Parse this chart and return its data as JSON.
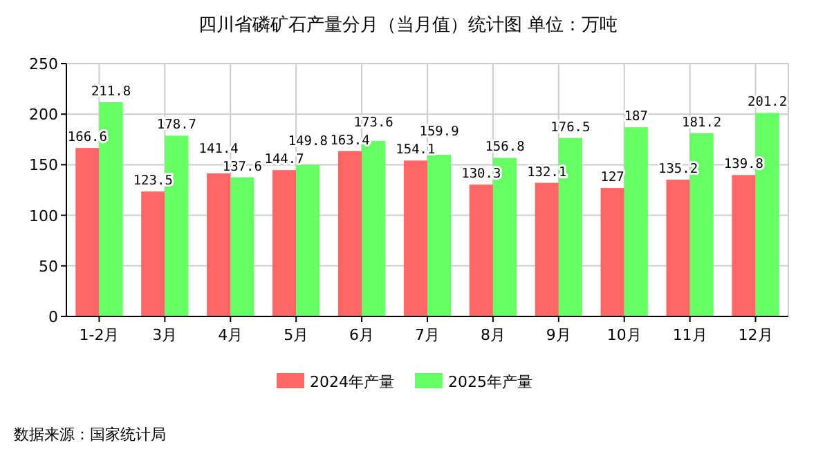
{
  "chart_data": {
    "type": "bar",
    "title": "四川省磷矿石产量分月（当月值）统计图 单位：万吨",
    "categories": [
      "1-2月",
      "3月",
      "4月",
      "5月",
      "6月",
      "7月",
      "8月",
      "9月",
      "10月",
      "11月",
      "12月"
    ],
    "series": [
      {
        "name": "2024年产量",
        "color": "#ff6666",
        "values": [
          166.6,
          123.5,
          141.4,
          144.7,
          163.4,
          154.1,
          130.3,
          132.1,
          127,
          135.2,
          139.8
        ]
      },
      {
        "name": "2025年产量",
        "color": "#66ff66",
        "values": [
          211.8,
          178.7,
          137.6,
          149.8,
          173.6,
          159.9,
          156.8,
          176.5,
          187,
          181.2,
          201.2
        ]
      }
    ],
    "ylim": [
      0,
      250
    ],
    "yticks": [
      0,
      50,
      100,
      150,
      200,
      250
    ],
    "grid": true,
    "legend": "bottom",
    "data_labels": true,
    "annotations": [
      "数据来源：国家统计局"
    ]
  }
}
